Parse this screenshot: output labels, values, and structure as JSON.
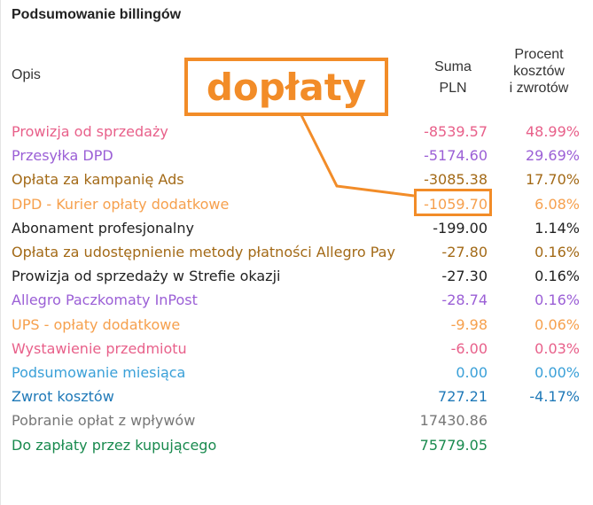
{
  "title": "Podsumowanie billingów",
  "columns": {
    "opis": "Opis",
    "suma_line1": "Suma",
    "suma_line2": "PLN",
    "procent_line1": "Procent",
    "procent_line2": "kosztów",
    "procent_line3": "i zwrotów"
  },
  "callout": {
    "text": "dopłaty",
    "color": "#f28c28"
  },
  "rows": [
    {
      "desc": "Prowizja od sprzedaży",
      "amount": "-8539.57",
      "percent": "48.99%",
      "color": "#e8608a"
    },
    {
      "desc": "Przesyłka DPD",
      "amount": "-5174.60",
      "percent": "29.69%",
      "color": "#9b5fd6"
    },
    {
      "desc": "Opłata za kampanię Ads",
      "amount": "-3085.38",
      "percent": "17.70%",
      "color": "#a36a17"
    },
    {
      "desc": "DPD - Kurier opłaty dodatkowe",
      "amount": "-1059.70",
      "percent": "6.08%",
      "color": "#f6a04d"
    },
    {
      "desc": "Abonament profesjonalny",
      "amount": "-199.00",
      "percent": "1.14%",
      "color": "#222222"
    },
    {
      "desc": "Opłata za udostępnienie metody płatności Allegro Pay",
      "amount": "-27.80",
      "percent": "0.16%",
      "color": "#a36a17"
    },
    {
      "desc": "Prowizja od sprzedaży w Strefie okazji",
      "amount": "-27.30",
      "percent": "0.16%",
      "color": "#222222"
    },
    {
      "desc": "Allegro Paczkomaty InPost",
      "amount": "-28.74",
      "percent": "0.16%",
      "color": "#9b5fd6"
    },
    {
      "desc": "UPS - opłaty dodatkowe",
      "amount": "-9.98",
      "percent": "0.06%",
      "color": "#f6a04d"
    },
    {
      "desc": "Wystawienie przedmiotu",
      "amount": "-6.00",
      "percent": "0.03%",
      "color": "#e8608a"
    },
    {
      "desc": "Podsumowanie miesiąca",
      "amount": "0.00",
      "percent": "0.00%",
      "color": "#3aa0d8"
    },
    {
      "desc": "Zwrot kosztów",
      "amount": "727.21",
      "percent": "-4.17%",
      "color": "#1f79b8"
    },
    {
      "desc": "Pobranie opłat z wpływów",
      "amount": "17430.86",
      "percent": "",
      "color": "#777777"
    },
    {
      "desc": "Do zapłaty przez kupującego",
      "amount": "75779.05",
      "percent": "",
      "color": "#198a4e"
    }
  ]
}
